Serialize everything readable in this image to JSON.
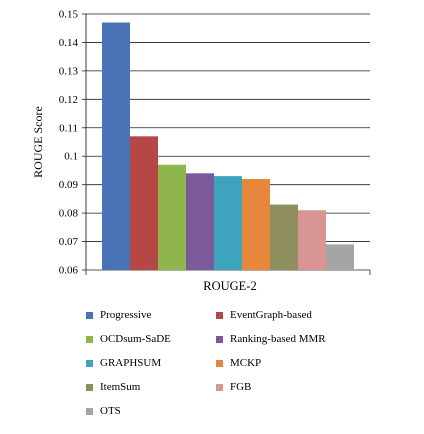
{
  "chart_data": {
    "type": "bar",
    "categories": [
      "ROUGE-2"
    ],
    "xlabel": "ROUGE-2",
    "ylabel": "ROUGE Score",
    "ylim": [
      0.06,
      0.15
    ],
    "yticks": [
      "0.06",
      "0.07",
      "0.08",
      "0.09",
      "0.1",
      "0.11",
      "0.12",
      "0.13",
      "0.14",
      "0.15"
    ],
    "grid": "y-major",
    "legend_position": "bottom",
    "series": [
      {
        "name": "Progressive",
        "values": [
          0.147
        ],
        "color": "#4a73b7"
      },
      {
        "name": "EventGraph-based",
        "values": [
          0.107
        ],
        "color": "#b54845"
      },
      {
        "name": "OCDsum-SaDE",
        "values": [
          0.097
        ],
        "color": "#90b54f"
      },
      {
        "name": "Ranking-based MMR",
        "values": [
          0.094
        ],
        "color": "#7a5a9b"
      },
      {
        "name": "GRAPHSUM",
        "values": [
          0.093
        ],
        "color": "#3ea3bd"
      },
      {
        "name": "MCKP",
        "values": [
          0.092
        ],
        "color": "#e7873b"
      },
      {
        "name": "ItemSum",
        "values": [
          0.083
        ],
        "color": "#8e8e5e"
      },
      {
        "name": "FGB",
        "values": [
          0.081
        ],
        "color": "#d99594"
      },
      {
        "name": "OTS",
        "values": [
          0.069
        ],
        "color": "#a5a5a5"
      }
    ]
  }
}
